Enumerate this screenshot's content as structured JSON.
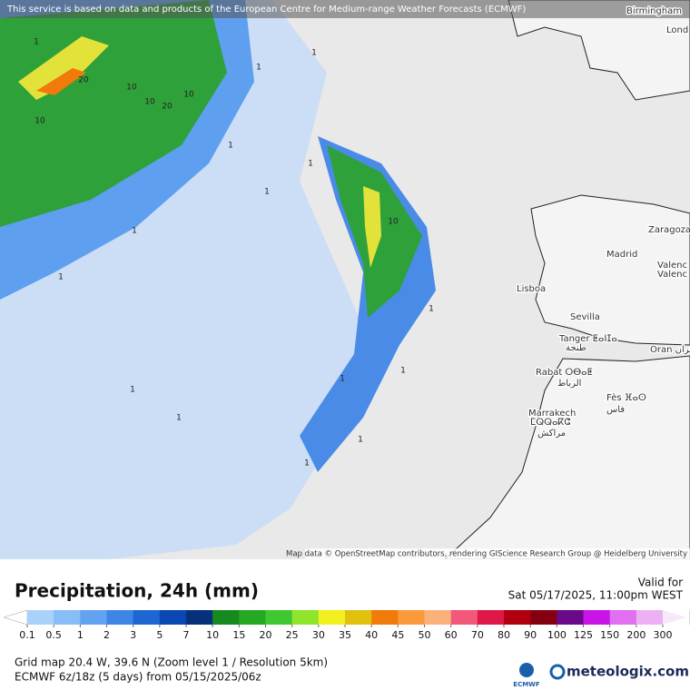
{
  "map": {
    "notice": "This service is based on data and products of the European Centre for Medium-range Weather Forecasts (ECMWF)",
    "attribution": "Map data © OpenStreetMap contributors, rendering GIScience Research Group @ Heidelberg University",
    "cities": [
      "Birmingham",
      "Lond",
      "Zaragoza",
      "Madrid",
      "Valenc",
      "Valenc",
      "Lisboa",
      "Sevilla",
      "Tanger ⵟⴰⵏⵊⴰ",
      "طنجة",
      "Rabat ⵔⴱⴰⵟ",
      "الرباط",
      "Oran وهران",
      "Fès ⴼⴰⵙ",
      "فاس",
      "Marrakech",
      "ⵎⵕⵕⴰⴽⵛ",
      "مراكش"
    ],
    "contour_labels": [
      "20",
      "10",
      "10",
      "20",
      "10",
      "10",
      "1",
      "1",
      "1",
      "1",
      "1",
      "1",
      "10",
      "1",
      "1",
      "1",
      "1",
      "1",
      "1",
      "1",
      "1",
      "1"
    ]
  },
  "legend": {
    "title": "Precipitation, 24h (mm)",
    "valid_label": "Valid for",
    "valid_time": "Sat 05/17/2025, 11:00pm WEST",
    "labels": [
      0.1,
      0.5,
      1,
      2,
      3,
      5,
      7,
      10,
      15,
      20,
      25,
      30,
      35,
      40,
      45,
      50,
      60,
      70,
      80,
      90,
      100,
      125,
      150,
      200,
      300
    ],
    "colors": [
      "#a9d2fb",
      "#88bdf7",
      "#62a2f1",
      "#3f85e6",
      "#1f66d3",
      "#0b47b3",
      "#07307a",
      "#168a1e",
      "#27a823",
      "#3fc831",
      "#8fe52c",
      "#f2f01e",
      "#e0c20e",
      "#f07a0a",
      "#fb9a3c",
      "#fbb27a",
      "#f2587a",
      "#e01848",
      "#b00010",
      "#840010",
      "#6a0a8a",
      "#c814e6",
      "#e070f0",
      "#eeb0f4",
      "#f7e8fa",
      "#cfcfcf"
    ],
    "grid_info": "Grid map 20.4 W, 39.6 N (Zoom level 1 / Resolution 5km)",
    "model_info": "ECMWF 6z/18z (5 days) from 05/15/2025/06z",
    "ecmwf": "ECMWF",
    "brand": "meteologix.com"
  }
}
